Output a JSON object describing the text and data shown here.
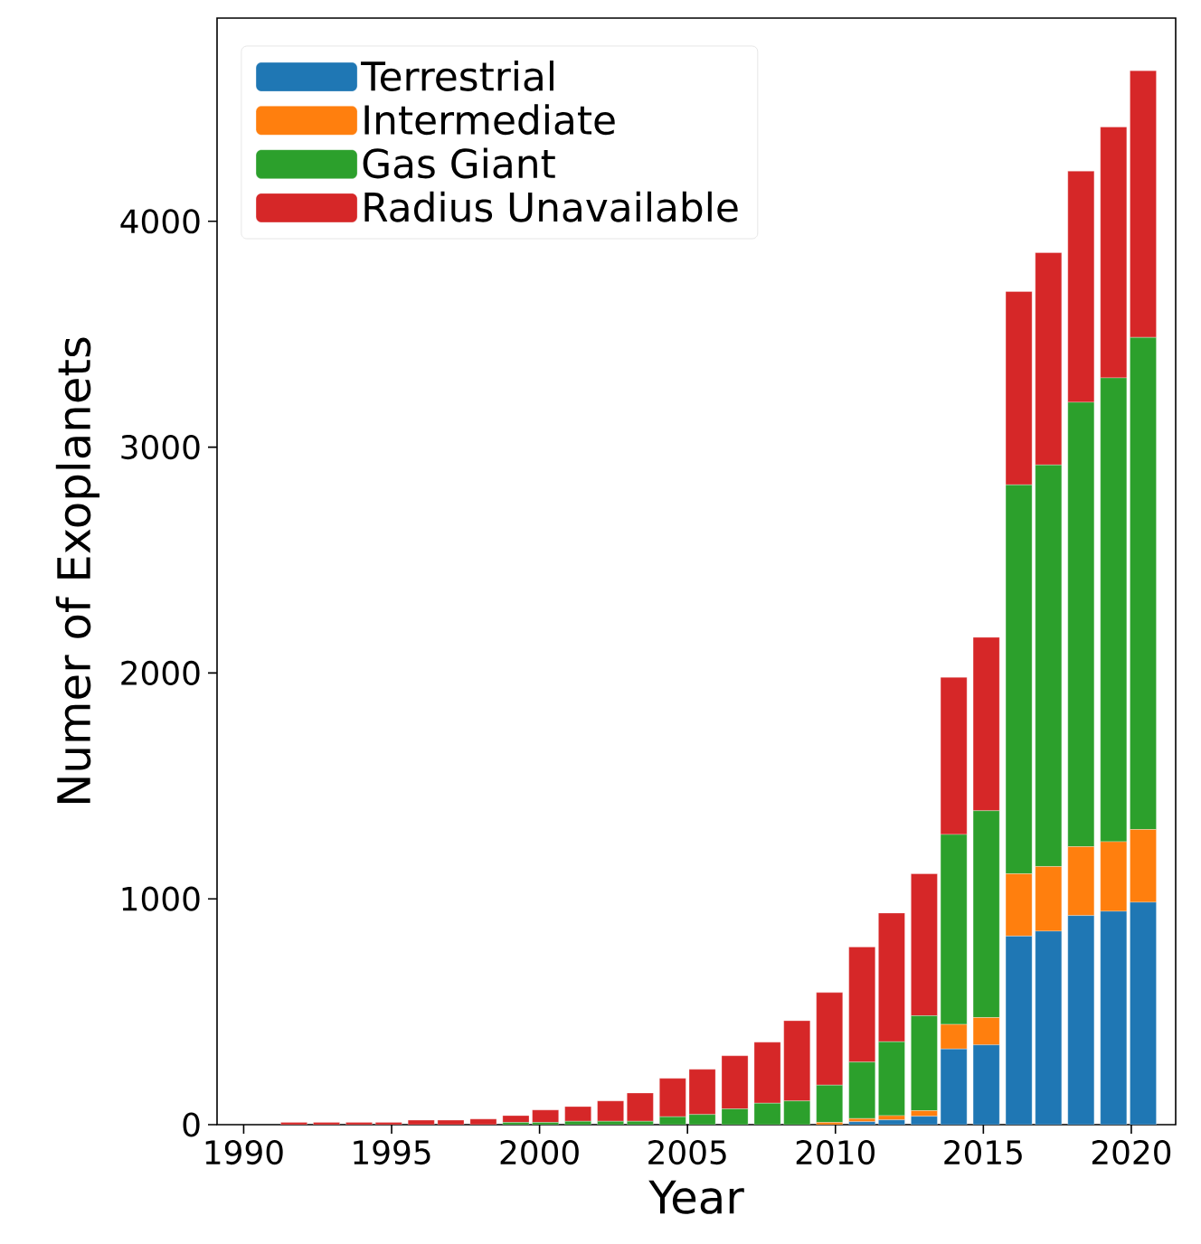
{
  "chart_data": {
    "type": "bar",
    "stacked": true,
    "xlabel": "Year",
    "ylabel": "Numer of Exoplanets",
    "x": [
      1991.7,
      1992.8,
      1993.9,
      1994.9,
      1996.0,
      1997.0,
      1998.1,
      1999.2,
      2000.2,
      2001.3,
      2002.4,
      2003.4,
      2004.5,
      2005.5,
      2006.6,
      2007.7,
      2008.7,
      2009.8,
      2010.9,
      2011.9,
      2013.0,
      2014.0,
      2015.1,
      2016.2,
      2017.2,
      2018.3,
      2019.4,
      2020.4
    ],
    "series": [
      {
        "name": "Terrestrial",
        "color": "#1f77b4",
        "values": [
          0,
          0,
          0,
          0,
          0,
          0,
          0,
          0,
          0,
          0,
          0,
          0,
          0,
          0,
          0,
          0,
          0,
          0,
          13,
          21,
          37,
          335,
          353,
          835,
          857,
          926,
          945,
          985
        ]
      },
      {
        "name": "Intermediate",
        "color": "#ff7f0e",
        "values": [
          0,
          0,
          0,
          0,
          0,
          0,
          0,
          0,
          0,
          0,
          0,
          0,
          0,
          0,
          0,
          0,
          0,
          10,
          14,
          19,
          25,
          109,
          121,
          276,
          286,
          305,
          308,
          322
        ]
      },
      {
        "name": "Gas Giant",
        "color": "#2ca02c",
        "values": [
          0,
          0,
          0,
          0,
          0,
          0,
          0,
          10,
          10,
          15,
          15,
          15,
          35,
          45,
          70,
          95,
          105,
          165,
          250,
          327,
          420,
          841,
          916,
          1722,
          1778,
          1968,
          2054,
          2179
        ]
      },
      {
        "name": "Radius Unavailable",
        "color": "#d62728",
        "values": [
          10,
          10,
          10,
          10,
          20,
          20,
          25,
          30,
          55,
          65,
          90,
          125,
          170,
          200,
          235,
          270,
          355,
          410,
          510,
          570,
          629,
          696,
          768,
          856,
          940,
          1023,
          1111,
          1181
        ]
      }
    ],
    "xlim": [
      1989.1,
      2021.5
    ],
    "xticks": [
      1990,
      1995,
      2000,
      2005,
      2010,
      2015,
      2020
    ],
    "ylim": [
      0,
      4900
    ],
    "yticks": [
      0,
      1000,
      2000,
      3000,
      4000
    ],
    "legend": "top left"
  }
}
